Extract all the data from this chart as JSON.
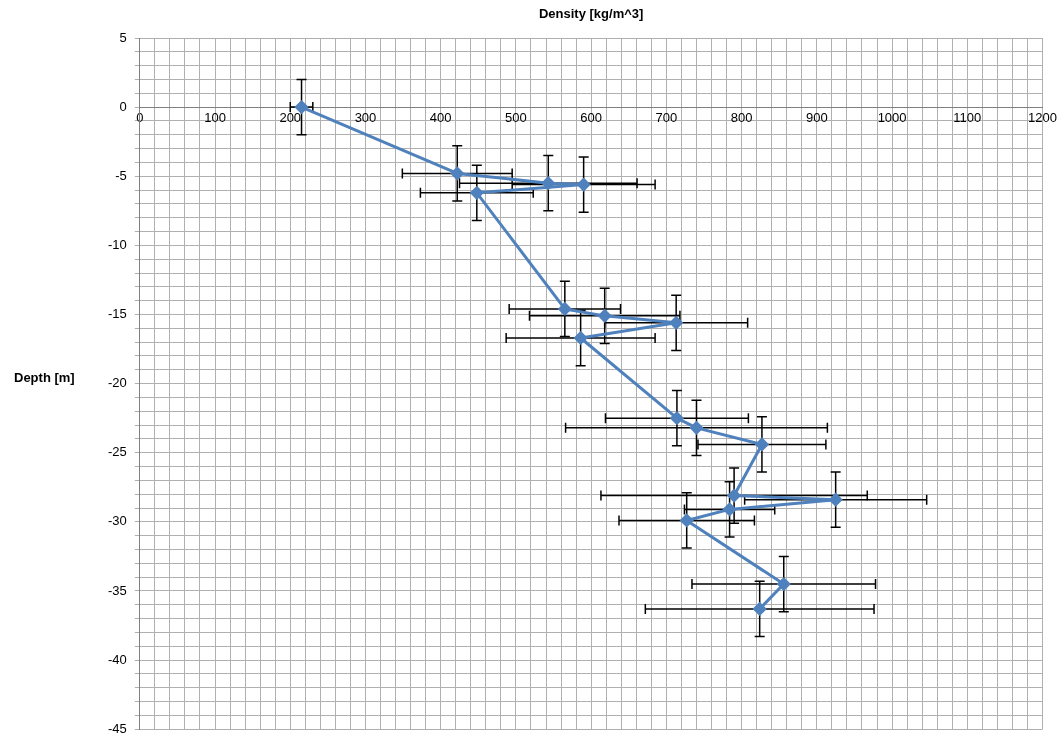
{
  "chart_data": {
    "type": "line",
    "xlabel": "Density [kg/m^3]",
    "ylabel": "Depth [m]",
    "series": [
      {
        "color": "#4f81bd",
        "x": [
          215,
          422,
          543,
          590,
          448,
          565,
          618,
          713,
          586,
          714,
          740,
          827,
          790,
          925,
          784,
          727,
          856,
          824
        ],
        "values": [
          0,
          -4.8,
          -5.5,
          -5.6,
          -6.2,
          -14.6,
          -15.1,
          -15.6,
          -16.7,
          -22.5,
          -23.2,
          -24.4,
          -28.1,
          -28.4,
          -29.1,
          -29.9,
          -34.5,
          -36.3
        ],
        "errors": [
          2,
          2,
          2,
          2,
          2,
          2,
          2,
          2,
          2,
          2,
          2,
          2,
          2,
          2,
          2,
          2,
          2,
          2
        ],
        "xerrors": [
          15,
          73,
          118,
          95,
          75,
          74,
          100,
          95,
          99,
          95,
          174,
          85,
          177,
          121,
          60,
          90,
          122,
          152
        ]
      }
    ],
    "xlim": [
      0,
      1200
    ],
    "ylim": [
      -45,
      5
    ],
    "xticks": [
      0,
      {
        "value": 20,
        "label": null
      },
      {
        "value": 40,
        "label": null
      },
      {
        "value": 60,
        "label": null
      },
      {
        "value": 80,
        "label": null
      },
      100,
      {
        "value": 120,
        "label": null
      },
      {
        "value": 140,
        "label": null
      },
      {
        "value": 160,
        "label": null
      },
      {
        "value": 180,
        "label": null
      },
      200,
      {
        "value": 220,
        "label": null
      },
      {
        "value": 240,
        "label": null
      },
      {
        "value": 260,
        "label": null
      },
      {
        "value": 280,
        "label": null
      },
      300,
      {
        "value": 320,
        "label": null
      },
      {
        "value": 340,
        "label": null
      },
      {
        "value": 360,
        "label": null
      },
      {
        "value": 380,
        "label": null
      },
      400,
      {
        "value": 420,
        "label": null
      },
      {
        "value": 440,
        "label": null
      },
      {
        "value": 460,
        "label": null
      },
      {
        "value": 480,
        "label": null
      },
      500,
      {
        "value": 520,
        "label": null
      },
      {
        "value": 540,
        "label": null
      },
      {
        "value": 560,
        "label": null
      },
      {
        "value": 580,
        "label": null
      },
      600,
      {
        "value": 620,
        "label": null
      },
      {
        "value": 640,
        "label": null
      },
      {
        "value": 660,
        "label": null
      },
      {
        "value": 680,
        "label": null
      },
      700,
      {
        "value": 720,
        "label": null
      },
      {
        "value": 740,
        "label": null
      },
      {
        "value": 760,
        "label": null
      },
      {
        "value": 780,
        "label": null
      },
      800,
      {
        "value": 820,
        "label": null
      },
      {
        "value": 840,
        "label": null
      },
      {
        "value": 860,
        "label": null
      },
      {
        "value": 880,
        "label": null
      },
      900,
      {
        "value": 920,
        "label": null
      },
      {
        "value": 940,
        "label": null
      },
      {
        "value": 960,
        "label": null
      },
      {
        "value": 980,
        "label": null
      },
      1000,
      {
        "value": 1020,
        "label": null
      },
      {
        "value": 1040,
        "label": null
      },
      {
        "value": 1060,
        "label": null
      },
      {
        "value": 1080,
        "label": null
      },
      1100,
      {
        "value": 1120,
        "label": null
      },
      {
        "value": 1140,
        "label": null
      },
      {
        "value": 1160,
        "label": null
      },
      {
        "value": 1180,
        "label": null
      },
      1200
    ],
    "yticks": [
      -45,
      {
        "value": -44,
        "label": null
      },
      {
        "value": -43,
        "label": null
      },
      {
        "value": -42,
        "label": null
      },
      {
        "value": -41,
        "label": null
      },
      -40,
      {
        "value": -39,
        "label": null
      },
      {
        "value": -38,
        "label": null
      },
      {
        "value": -37,
        "label": null
      },
      {
        "value": -36,
        "label": null
      },
      -35,
      {
        "value": -34,
        "label": null
      },
      {
        "value": -33,
        "label": null
      },
      {
        "value": -32,
        "label": null
      },
      {
        "value": -31,
        "label": null
      },
      -30,
      {
        "value": -29,
        "label": null
      },
      {
        "value": -28,
        "label": null
      },
      {
        "value": -27,
        "label": null
      },
      {
        "value": -26,
        "label": null
      },
      -25,
      {
        "value": -24,
        "label": null
      },
      {
        "value": -23,
        "label": null
      },
      {
        "value": -22,
        "label": null
      },
      {
        "value": -21,
        "label": null
      },
      -20,
      {
        "value": -19,
        "label": null
      },
      {
        "value": -18,
        "label": null
      },
      {
        "value": -17,
        "label": null
      },
      {
        "value": -16,
        "label": null
      },
      -15,
      {
        "value": -14,
        "label": null
      },
      {
        "value": -13,
        "label": null
      },
      {
        "value": -12,
        "label": null
      },
      {
        "value": -11,
        "label": null
      },
      -10,
      {
        "value": -9,
        "label": null
      },
      {
        "value": -8,
        "label": null
      },
      {
        "value": -7,
        "label": null
      },
      {
        "value": -6,
        "label": null
      },
      -5,
      {
        "value": -4,
        "label": null
      },
      {
        "value": -3,
        "label": null
      },
      {
        "value": -2,
        "label": null
      },
      {
        "value": -1,
        "label": null
      },
      0,
      {
        "value": 1,
        "label": null
      },
      {
        "value": 2,
        "label": null
      },
      {
        "value": 3,
        "label": null
      },
      {
        "value": 4,
        "label": null
      },
      5
    ],
    "grid": true,
    "marker": "diamond",
    "line_style": "solid"
  }
}
